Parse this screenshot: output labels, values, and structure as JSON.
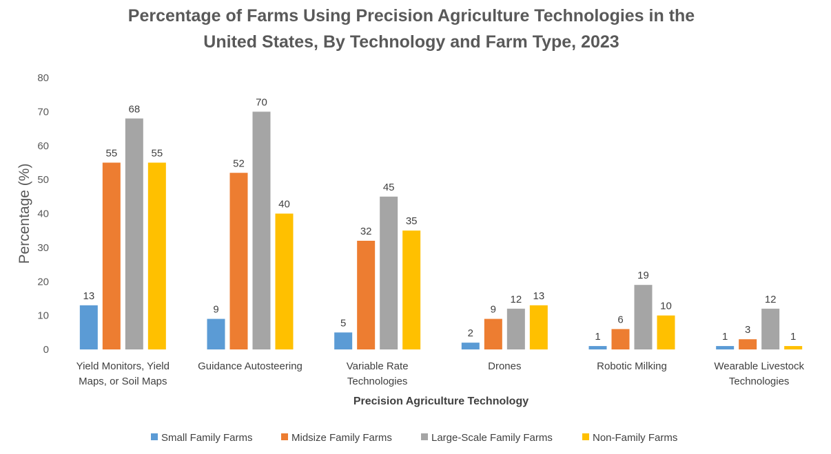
{
  "chart_data": {
    "type": "bar",
    "title_lines": [
      "Percentage of Farms Using Precision Agriculture Technologies in the",
      "United States, By Technology and Farm Type, 2023"
    ],
    "xlabel": "Precision Agriculture Technology",
    "ylabel": "Percentage (%)",
    "ylim": [
      0,
      80
    ],
    "yticks": [
      0,
      10,
      20,
      30,
      40,
      50,
      60,
      70,
      80
    ],
    "categories": [
      [
        "Yield Monitors, Yield",
        "Maps, or Soil Maps"
      ],
      [
        "Guidance Autosteering"
      ],
      [
        "Variable Rate",
        "Technologies"
      ],
      [
        "Drones"
      ],
      [
        "Robotic Milking"
      ],
      [
        "Wearable Livestock",
        "Technologies"
      ]
    ],
    "series": [
      {
        "name": "Small Family Farms",
        "color": "#5B9BD5",
        "values": [
          13,
          9,
          5,
          2,
          1,
          1
        ]
      },
      {
        "name": "Midsize Family Farms",
        "color": "#ED7D31",
        "values": [
          55,
          52,
          32,
          9,
          6,
          3
        ]
      },
      {
        "name": "Large-Scale Family Farms",
        "color": "#A5A5A5",
        "values": [
          68,
          70,
          45,
          12,
          19,
          12
        ]
      },
      {
        "name": "Non-Family Farms",
        "color": "#FFC000",
        "values": [
          55,
          40,
          35,
          13,
          10,
          1
        ]
      }
    ],
    "legend_position": "bottom",
    "grid": false
  }
}
